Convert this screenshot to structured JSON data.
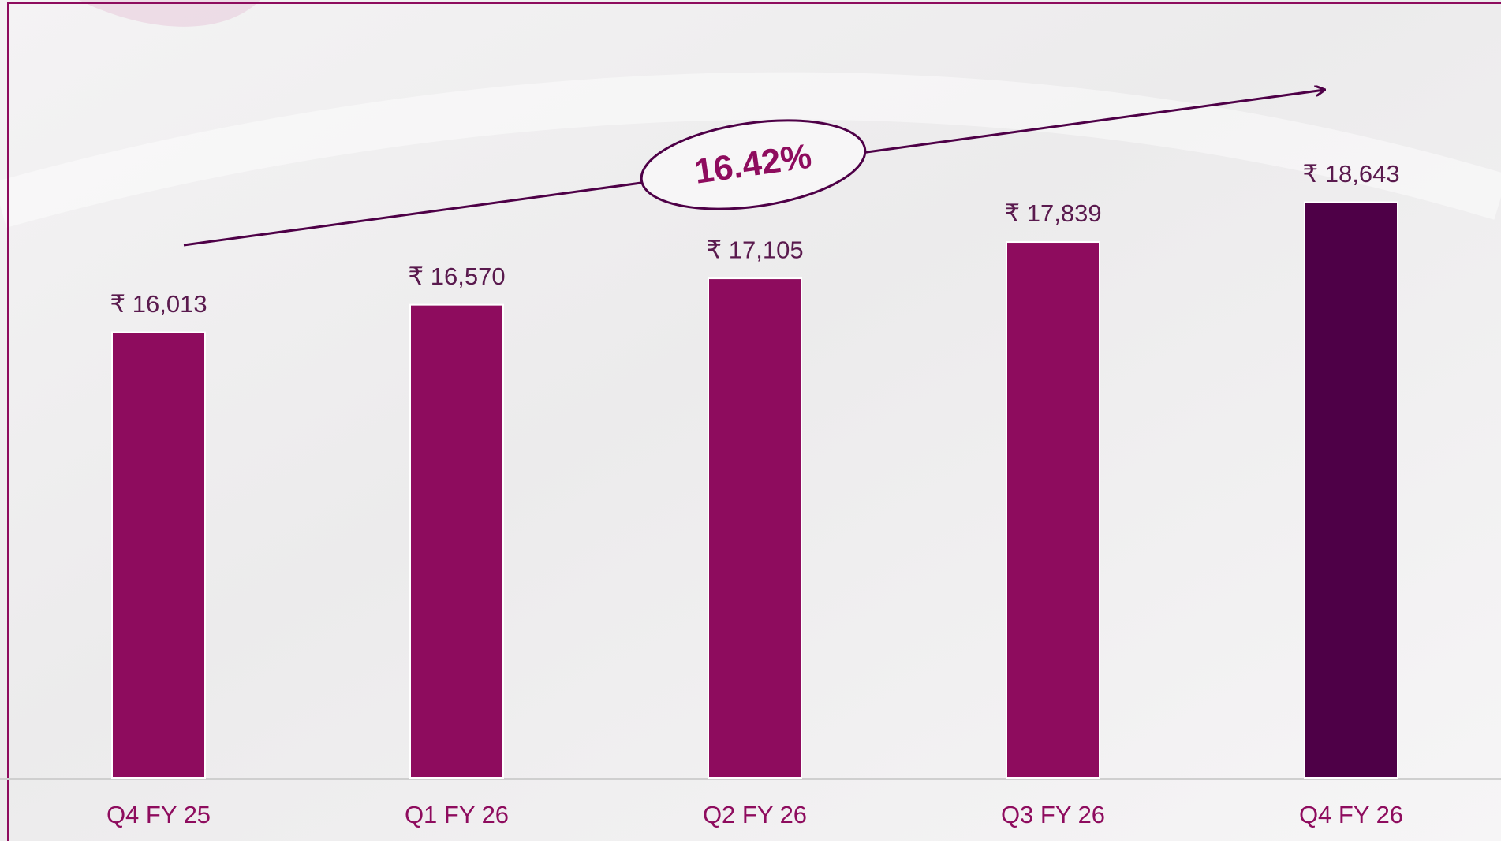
{
  "chart_data": {
    "type": "bar",
    "categories": [
      "Q4 FY 25",
      "Q1 FY 26",
      "Q2 FY 26",
      "Q3 FY 26",
      "Q4 FY 26"
    ],
    "values": [
      16013,
      16570,
      17105,
      17839,
      18643
    ],
    "value_labels": [
      "₹ 16,013",
      "₹ 16,570",
      "₹ 17,105",
      "₹ 17,839",
      "₹ 18,643"
    ],
    "colors": [
      "#8e0c5e",
      "#8e0c5e",
      "#8e0c5e",
      "#8e0c5e",
      "#4e0047"
    ],
    "ylim": [
      7000,
      22000
    ],
    "annotation": "16.42%"
  }
}
